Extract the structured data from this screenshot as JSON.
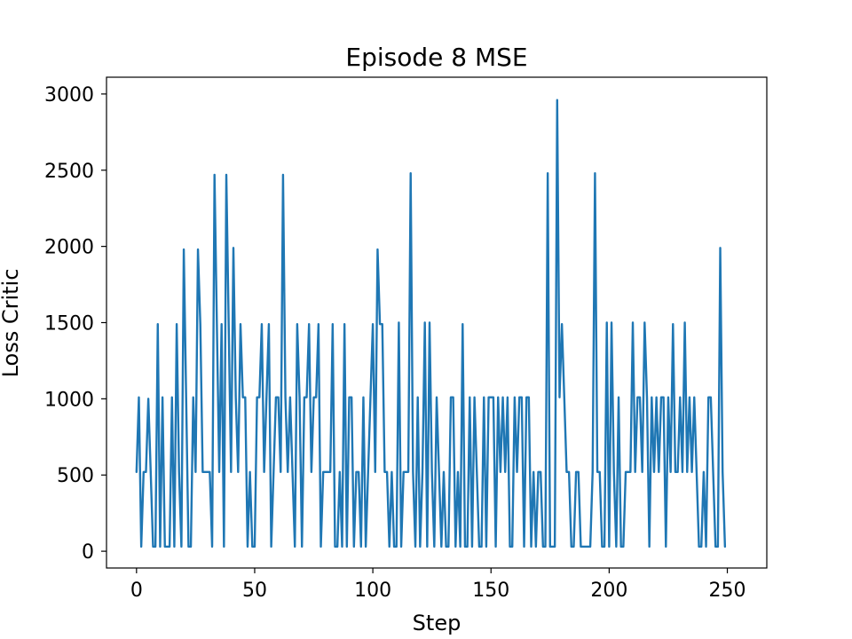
{
  "chart_data": {
    "type": "line",
    "title": "Episode 8 MSE",
    "xlabel": "Step",
    "ylabel": "Loss Critic",
    "xlim": [
      -12.7,
      266.7
    ],
    "ylim": [
      -110,
      3110
    ],
    "xticks": [
      0,
      50,
      100,
      150,
      200,
      250
    ],
    "yticks": [
      0,
      500,
      1000,
      1500,
      2000,
      2500,
      3000
    ],
    "grid": false,
    "legend": "none",
    "series": [
      {
        "color": "#1f77b4",
        "x_start": 0,
        "x_step": 1,
        "values": [
          520,
          1010,
          30,
          520,
          520,
          1000,
          520,
          30,
          30,
          1490,
          30,
          1010,
          30,
          30,
          30,
          1010,
          30,
          1490,
          520,
          30,
          1980,
          1010,
          30,
          30,
          1010,
          520,
          1980,
          1490,
          520,
          520,
          520,
          520,
          30,
          2470,
          1490,
          520,
          1490,
          30,
          2470,
          1490,
          520,
          1990,
          1010,
          520,
          1490,
          1010,
          1010,
          30,
          520,
          30,
          30,
          1010,
          1010,
          1490,
          520,
          1010,
          1490,
          30,
          520,
          1010,
          1010,
          520,
          2470,
          1010,
          520,
          1010,
          520,
          30,
          1490,
          1010,
          30,
          1010,
          1010,
          1490,
          520,
          1010,
          1010,
          1490,
          30,
          520,
          520,
          520,
          520,
          1490,
          30,
          30,
          520,
          30,
          1490,
          30,
          1010,
          1010,
          30,
          520,
          520,
          30,
          1010,
          30,
          520,
          1010,
          1490,
          520,
          1980,
          1490,
          1490,
          520,
          520,
          30,
          520,
          30,
          30,
          1500,
          30,
          520,
          520,
          520,
          2480,
          520,
          30,
          1010,
          30,
          520,
          1500,
          30,
          1500,
          520,
          30,
          1010,
          520,
          30,
          520,
          30,
          30,
          1010,
          1010,
          30,
          520,
          30,
          1490,
          30,
          30,
          1010,
          30,
          1010,
          520,
          30,
          30,
          1010,
          30,
          1010,
          1010,
          1010,
          30,
          1010,
          520,
          1010,
          520,
          1010,
          30,
          30,
          1010,
          520,
          1010,
          1010,
          30,
          1010,
          1010,
          30,
          520,
          30,
          520,
          520,
          30,
          30,
          2480,
          30,
          30,
          30,
          2960,
          1010,
          1490,
          1010,
          520,
          520,
          30,
          30,
          520,
          520,
          30,
          30,
          30,
          30,
          30,
          520,
          2480,
          520,
          520,
          30,
          30,
          1500,
          30,
          1500,
          520,
          30,
          1010,
          30,
          30,
          520,
          520,
          520,
          1500,
          520,
          1010,
          1010,
          520,
          1500,
          1010,
          30,
          1010,
          520,
          1010,
          520,
          1010,
          1010,
          30,
          1010,
          520,
          1490,
          520,
          520,
          1010,
          520,
          1500,
          520,
          1010,
          520,
          1010,
          520,
          30,
          30,
          520,
          30,
          1010,
          1010,
          520,
          30,
          30,
          1990,
          520,
          30
        ]
      }
    ]
  }
}
